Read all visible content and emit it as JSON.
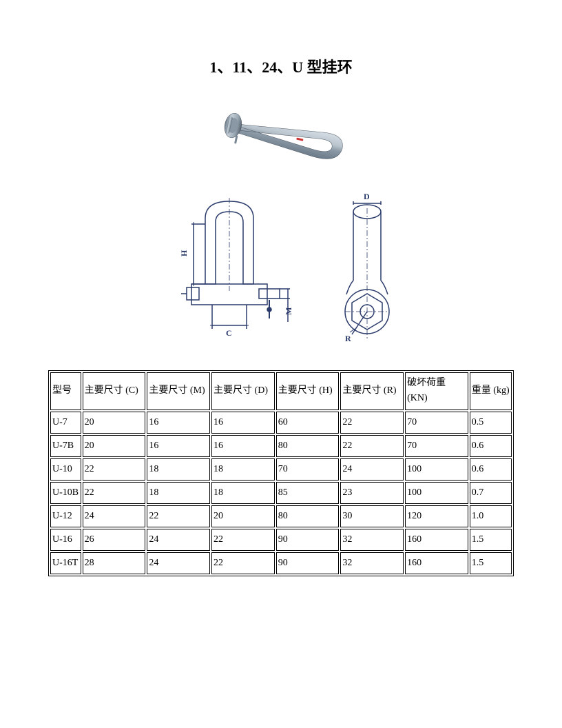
{
  "title": "1、11、24、U 型挂环",
  "table": {
    "columns": [
      "型号",
      "主要尺寸 (C)",
      "主要尺寸 (M)",
      "主要尺寸 (D)",
      "主要尺寸 (H)",
      "主要尺寸 (R)",
      "破坏荷重 (KN)",
      "重量 (kg)"
    ],
    "rows": [
      [
        "U-7",
        "20",
        "16",
        "16",
        "60",
        "22",
        "70",
        "0.5"
      ],
      [
        "U-7B",
        "20",
        "16",
        "16",
        "80",
        "22",
        "70",
        "0.6"
      ],
      [
        "U-10",
        "22",
        "18",
        "18",
        "70",
        "24",
        "100",
        "0.6"
      ],
      [
        "U-10B",
        "22",
        "18",
        "18",
        "85",
        "23",
        "100",
        "0.7"
      ],
      [
        "U-12",
        "24",
        "22",
        "20",
        "80",
        "30",
        "120",
        "1.0"
      ],
      [
        "U-16",
        "26",
        "24",
        "22",
        "90",
        "32",
        "160",
        "1.5"
      ],
      [
        "U-16T",
        "28",
        "24",
        "22",
        "90",
        "32",
        "160",
        "1.5"
      ]
    ]
  },
  "diagram_labels": {
    "front_h": "H",
    "front_c": "C",
    "front_m": "M",
    "top_d": "D",
    "top_r": "R"
  },
  "colors": {
    "shackle_metal": "#a8b5c0",
    "shackle_shadow": "#6b7a88",
    "shackle_highlight": "#d5dde4",
    "diagram_line": "#2a3a6a",
    "background": "#ffffff",
    "text": "#000000"
  }
}
